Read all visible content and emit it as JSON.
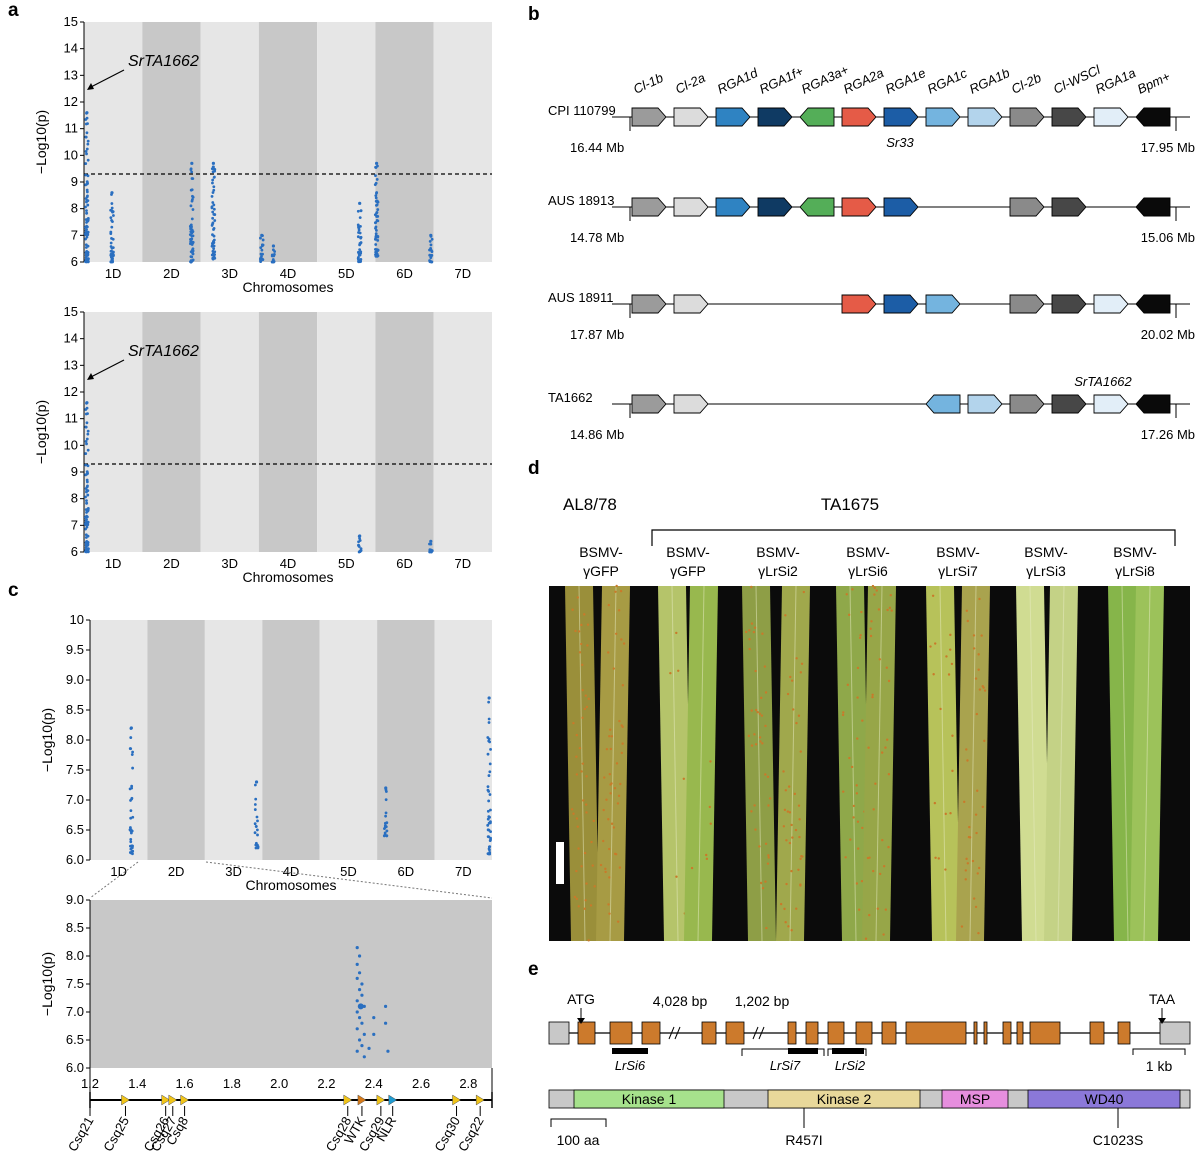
{
  "figure": {
    "panel_a": {
      "label": "a",
      "plots": [
        {
          "ylabel": "−Log10(p)",
          "xlabel": "Chromosomes",
          "ylim": [
            6,
            15
          ],
          "threshold": 9.3,
          "annotation": "SrTA1662",
          "chromosomes": [
            "1D",
            "2D",
            "3D",
            "4D",
            "5D",
            "6D",
            "7D"
          ],
          "clusters": [
            {
              "chrom": 0,
              "pos": 0.05,
              "ymin": 6.0,
              "ymax": 11.6
            },
            {
              "chrom": 0,
              "pos": 0.48,
              "ymin": 6.0,
              "ymax": 8.6
            },
            {
              "chrom": 1,
              "pos": 0.85,
              "ymin": 6.0,
              "ymax": 9.7
            },
            {
              "chrom": 2,
              "pos": 0.22,
              "ymin": 6.1,
              "ymax": 9.7
            },
            {
              "chrom": 3,
              "pos": 0.05,
              "ymin": 6.0,
              "ymax": 7.0
            },
            {
              "chrom": 3,
              "pos": 0.25,
              "ymin": 6.0,
              "ymax": 6.6
            },
            {
              "chrom": 4,
              "pos": 0.73,
              "ymin": 6.0,
              "ymax": 8.2
            },
            {
              "chrom": 5,
              "pos": 0.02,
              "ymin": 6.2,
              "ymax": 9.7
            },
            {
              "chrom": 5,
              "pos": 0.95,
              "ymin": 6.0,
              "ymax": 7.0
            }
          ]
        },
        {
          "ylabel": "−Log10(p)",
          "xlabel": "Chromosomes",
          "ylim": [
            6,
            15
          ],
          "threshold": 9.3,
          "annotation": "SrTA1662",
          "chromosomes": [
            "1D",
            "2D",
            "3D",
            "4D",
            "5D",
            "6D",
            "7D"
          ],
          "clusters": [
            {
              "chrom": 0,
              "pos": 0.05,
              "ymin": 6.0,
              "ymax": 11.6
            },
            {
              "chrom": 4,
              "pos": 0.73,
              "ymin": 6.0,
              "ymax": 6.6
            },
            {
              "chrom": 5,
              "pos": 0.95,
              "ymin": 6.0,
              "ymax": 6.4
            }
          ]
        }
      ]
    },
    "panel_b": {
      "label": "b",
      "gene_headers": [
        "Cl-1b",
        "Cl-2a",
        "RGA1d",
        "RGA1f+",
        "RGA3a+",
        "RGA2a",
        "RGA1e",
        "RGA1c",
        "RGA1b",
        "Cl-2b",
        "Cl-WSCl",
        "RGA1a",
        "Bpm+"
      ],
      "gene_colors": [
        "#9b9b9b",
        "#dcdcdc",
        "#2f83c2",
        "#0f3a63",
        "#54ae58",
        "#e55b47",
        "#1c5da6",
        "#74b4df",
        "#b3d4ec",
        "#8a8a8a",
        "#474747",
        "#e2eef8",
        "#0a0a0a"
      ],
      "haplotypes": [
        {
          "name": "CPI 110799",
          "start": "16.44 Mb",
          "end": "17.95 Mb",
          "note": "Sr33",
          "genes": [
            0,
            1,
            2,
            3,
            4,
            5,
            6,
            7,
            8,
            9,
            10,
            11,
            12
          ],
          "reversed": [
            4,
            12
          ]
        },
        {
          "name": "AUS 18913",
          "start": "14.78 Mb",
          "end": "15.06 Mb",
          "genes": [
            0,
            1,
            2,
            3,
            4,
            5,
            6,
            9,
            10,
            12
          ],
          "reversed": [
            4,
            12
          ]
        },
        {
          "name": "AUS 18911",
          "start": "17.87 Mb",
          "end": "20.02 Mb",
          "genes": [
            0,
            1,
            5,
            6,
            7,
            9,
            10,
            11,
            12
          ],
          "reversed": [
            12
          ]
        },
        {
          "name": "TA1662",
          "start": "14.86 Mb",
          "end": "17.26 Mb",
          "note": "SrTA1662",
          "genes": [
            0,
            1,
            7,
            8,
            9,
            10,
            11,
            12
          ],
          "reversed": [
            7,
            12
          ]
        }
      ]
    },
    "panel_c": {
      "label": "c",
      "genome_plot": {
        "ylabel": "−Log10(p)",
        "xlabel": "Chromosomes",
        "ylim": [
          6,
          10
        ],
        "yticks": [
          "6.0",
          "6.5",
          "7.0",
          "7.5",
          "8.0",
          "8.5",
          "9.0",
          "9.5",
          "10"
        ],
        "chromosomes": [
          "1D",
          "2D",
          "3D",
          "4D",
          "5D",
          "6D",
          "7D"
        ],
        "clusters": [
          {
            "chrom": 0,
            "pos": 0.72,
            "ymin": 6.1,
            "ymax": 8.2
          },
          {
            "chrom": 2,
            "pos": 0.9,
            "ymin": 6.2,
            "ymax": 7.3
          },
          {
            "chrom": 5,
            "pos": 0.15,
            "ymin": 6.4,
            "ymax": 7.2
          },
          {
            "chrom": 6,
            "pos": 0.95,
            "ymin": 6.1,
            "ymax": 8.7
          }
        ]
      },
      "zoom_plot": {
        "ylabel": "−Log10(p)",
        "ylim": [
          6,
          9
        ],
        "yticks": [
          "6.0",
          "6.5",
          "7.0",
          "7.5",
          "8.0",
          "8.5",
          "9.0"
        ],
        "xticks": [
          "1.2",
          "1.4",
          "1.6",
          "1.8",
          "2.0",
          "2.2",
          "2.4",
          "2.6",
          "2.8"
        ],
        "xlim": [
          1.2,
          2.9
        ],
        "points": [
          [
            2.33,
            8.15
          ],
          [
            2.34,
            8.0
          ],
          [
            2.33,
            7.85
          ],
          [
            2.34,
            7.7
          ],
          [
            2.33,
            7.6
          ],
          [
            2.35,
            7.5
          ],
          [
            2.34,
            7.4
          ],
          [
            2.35,
            7.3
          ],
          [
            2.33,
            7.2
          ],
          [
            2.36,
            7.1
          ],
          [
            2.33,
            7.0
          ],
          [
            2.34,
            6.9
          ],
          [
            2.35,
            6.8
          ],
          [
            2.33,
            6.7
          ],
          [
            2.36,
            6.6
          ],
          [
            2.34,
            6.5
          ],
          [
            2.35,
            6.4
          ],
          [
            2.33,
            6.3
          ],
          [
            2.36,
            6.2
          ],
          [
            2.4,
            6.9
          ],
          [
            2.4,
            6.6
          ],
          [
            2.45,
            7.1
          ],
          [
            2.45,
            6.8
          ],
          [
            2.46,
            6.3
          ],
          [
            2.38,
            6.35
          ]
        ],
        "genes": [
          {
            "name": "Csq21",
            "x": 1.2,
            "color": "#c63fc0"
          },
          {
            "name": "Csq25",
            "x": 1.35,
            "color": "#000000"
          },
          {
            "name": "Csq26",
            "x": 1.52,
            "color": "#000000"
          },
          {
            "name": "Csq27",
            "x": 1.55,
            "color": "#000000"
          },
          {
            "name": "Csq8",
            "x": 1.6,
            "color": "#000000"
          },
          {
            "name": "Csq28",
            "x": 2.29,
            "color": "#000000"
          },
          {
            "name": "WTK",
            "x": 2.35,
            "color": "#d67a19"
          },
          {
            "name": "Csq29",
            "x": 2.43,
            "color": "#000000"
          },
          {
            "name": "NLR",
            "x": 2.48,
            "color": "#1f9bd1"
          },
          {
            "name": "Csq30",
            "x": 2.75,
            "color": "#000000"
          },
          {
            "name": "Csq22",
            "x": 2.86,
            "color": "#c63fc0"
          }
        ]
      }
    },
    "panel_d": {
      "label": "d",
      "group_left": "AL8/78",
      "group_right": "TA1675",
      "treatments": [
        {
          "line1": "BSMV-",
          "line2": "γGFP"
        },
        {
          "line1": "BSMV-",
          "line2": "γGFP"
        },
        {
          "line1": "BSMV-",
          "line2": "γLrSi2"
        },
        {
          "line1": "BSMV-",
          "line2": "γLrSi6"
        },
        {
          "line1": "BSMV-",
          "line2": "γLrSi7"
        },
        {
          "line1": "BSMV-",
          "line2": "γLrSi3"
        },
        {
          "line1": "BSMV-",
          "line2": "γLrSi8"
        }
      ]
    },
    "panel_e": {
      "label": "e",
      "atg": "ATG",
      "taa": "TAA",
      "intron1": "4,028 bp",
      "intron2": "1,202 bp",
      "scale_gene": "1 kb",
      "scale_protein": "100 aa",
      "sirna": [
        "LrSi6",
        "LrSi7",
        "LrSi2"
      ],
      "domains": [
        {
          "name": "Kinase 1",
          "color": "#a6e28c"
        },
        {
          "name": "Kinase 2",
          "color": "#e8d89a"
        },
        {
          "name": "MSP",
          "color": "#e68ede"
        },
        {
          "name": "WD40",
          "color": "#8b78d9"
        }
      ],
      "mutations": [
        "R457I",
        "C1023S"
      ]
    }
  }
}
